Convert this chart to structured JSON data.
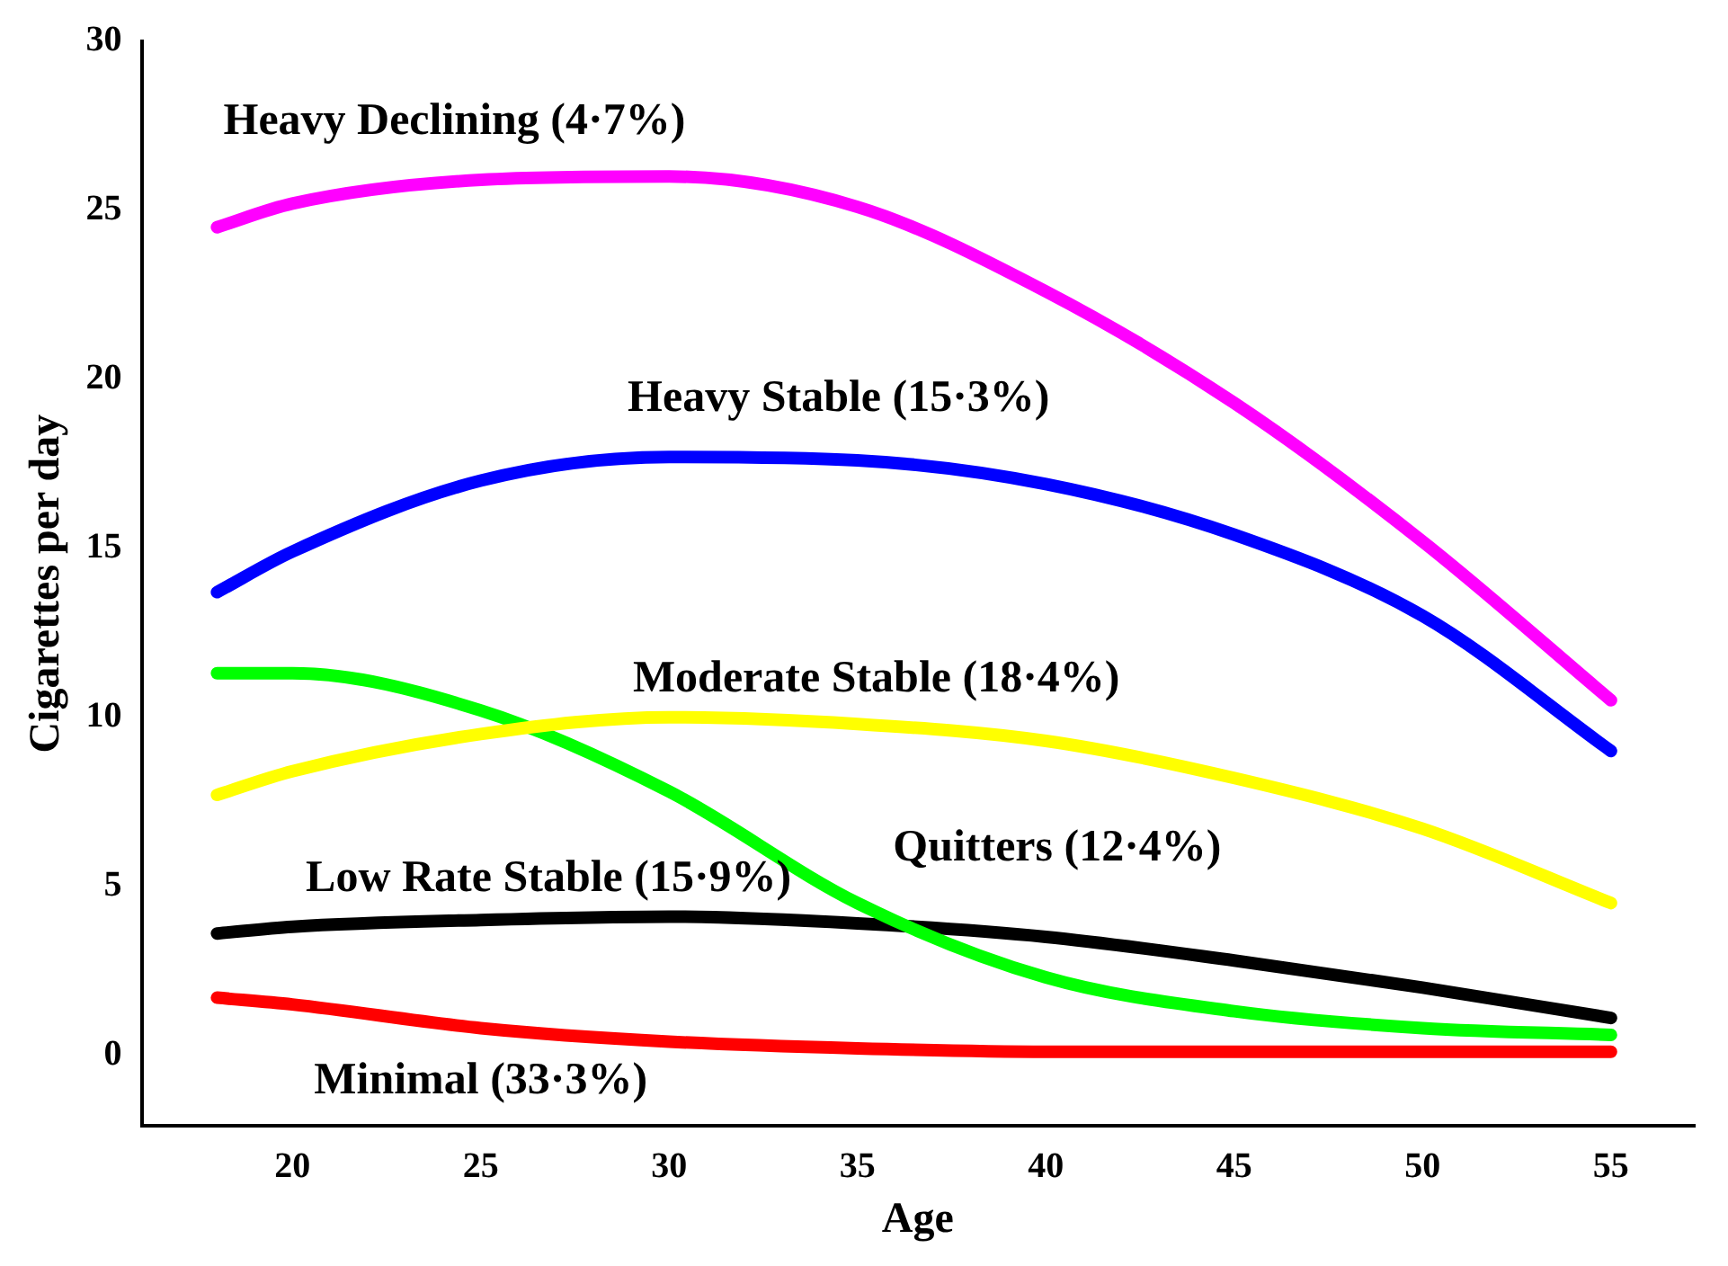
{
  "chart_data": {
    "type": "line",
    "xlabel": "Age",
    "ylabel": "Cigarettes per day",
    "x": [
      18,
      20,
      25,
      30,
      35,
      40,
      45,
      50,
      55
    ],
    "xlim": [
      16,
      57.2
    ],
    "xticks": [
      20,
      25,
      30,
      35,
      40,
      45,
      50,
      55
    ],
    "ylim": [
      -2.1,
      30
    ],
    "yticks": [
      0,
      5,
      10,
      15,
      20,
      25,
      30
    ],
    "grid": false,
    "legend": false,
    "marker": "none",
    "line_style": "solid",
    "series": [
      {
        "name": "Heavy Declining (4·7%)",
        "color": "#ff00ff",
        "values": [
          24.5,
          25.2,
          25.9,
          26.0,
          25.1,
          22.6,
          19.3,
          15.2,
          10.5
        ]
      },
      {
        "name": "Heavy Stable (15·3%)",
        "color": "#0000ff",
        "values": [
          13.7,
          14.9,
          17.0,
          17.7,
          17.6,
          16.9,
          15.4,
          13.0,
          9.0
        ]
      },
      {
        "name": "Moderate Stable (18·4%)",
        "color": "#ffff00",
        "values": [
          7.7,
          8.4,
          9.5,
          10.0,
          9.8,
          9.3,
          8.2,
          6.7,
          4.5
        ]
      },
      {
        "name": "Quitters (12·4%)",
        "color": "#00ff00",
        "values": [
          11.3,
          11.3,
          10.2,
          7.8,
          4.5,
          2.3,
          1.3,
          0.8,
          0.6
        ]
      },
      {
        "name": "Low Rate Stable (15·9%)",
        "color": "#000000",
        "values": [
          3.6,
          3.8,
          4.0,
          4.1,
          3.9,
          3.5,
          2.8,
          2.0,
          1.1
        ]
      },
      {
        "name": "Minimal (33·3%)",
        "color": "#ff0000",
        "values": [
          1.7,
          1.5,
          0.8,
          0.4,
          0.2,
          0.1,
          0.1,
          0.1,
          0.1
        ]
      }
    ]
  }
}
